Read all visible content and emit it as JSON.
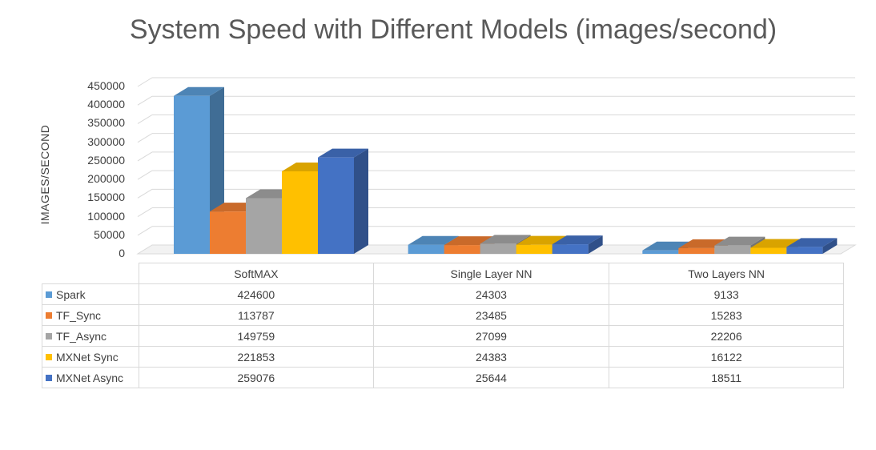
{
  "chart_data": {
    "type": "bar",
    "title": "System Speed with Different Models (images/second)",
    "xlabel": "",
    "ylabel": "IMAGES/SECOND",
    "ylim": [
      0,
      450000
    ],
    "yticks": [
      "450000",
      "400000",
      "350000",
      "300000",
      "250000",
      "200000",
      "150000",
      "100000",
      "50000",
      "0"
    ],
    "categories": [
      "SoftMAX",
      "Single Layer NN",
      "Two Layers NN"
    ],
    "grid": true,
    "legend": "data-table",
    "three_d": true,
    "series": [
      {
        "name": "Spark",
        "color": "#5b9bd5",
        "values": [
          424600,
          24303,
          9133
        ]
      },
      {
        "name": "TF_Sync",
        "color": "#ed7d31",
        "values": [
          113787,
          23485,
          15283
        ]
      },
      {
        "name": "TF_Async",
        "color": "#a5a5a5",
        "values": [
          149759,
          27099,
          22206
        ]
      },
      {
        "name": "MXNet Sync",
        "color": "#ffc000",
        "values": [
          221853,
          24383,
          16122
        ]
      },
      {
        "name": "MXNet Async",
        "color": "#4472c4",
        "values": [
          259076,
          25644,
          18511
        ]
      }
    ],
    "table_values": [
      [
        "424600",
        "24303",
        "9133"
      ],
      [
        "113787",
        "23485",
        "15283"
      ],
      [
        "149759",
        "27099",
        "22206"
      ],
      [
        "221853",
        "24383",
        "16122"
      ],
      [
        "259076",
        "25644",
        "18511"
      ]
    ]
  }
}
